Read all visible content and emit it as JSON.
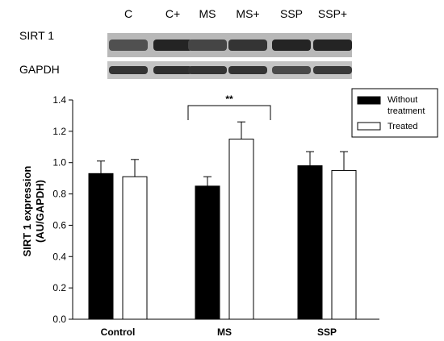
{
  "blot": {
    "lane_labels": [
      "C",
      "C+",
      "MS",
      "MS+",
      "SSP",
      "SSP+"
    ],
    "rows": [
      {
        "label": "SIRT 1",
        "intensities": [
          0.55,
          0.95,
          0.65,
          0.8,
          0.95,
          0.95
        ]
      },
      {
        "label": "GAPDH",
        "intensities": [
          0.8,
          0.85,
          0.8,
          0.8,
          0.6,
          0.75
        ]
      }
    ]
  },
  "chart_data": {
    "type": "bar",
    "title": "",
    "xlabel": "",
    "ylabel_lines": [
      "SIRT 1 expression",
      "(AU/GAPDH)"
    ],
    "categories": [
      "Control",
      "MS",
      "SSP"
    ],
    "ylim": [
      0.0,
      1.4
    ],
    "yticks": [
      "0.0",
      "0.2",
      "0.4",
      "0.6",
      "0.8",
      "1.0",
      "1.2",
      "1.4"
    ],
    "series": [
      {
        "name_lines": [
          "Without",
          "treatment"
        ],
        "color": "#000000",
        "values": [
          0.93,
          0.85,
          0.98
        ],
        "errors": [
          0.08,
          0.06,
          0.09
        ]
      },
      {
        "name_lines": [
          "Treated"
        ],
        "color": "#ffffff",
        "values": [
          0.91,
          1.15,
          0.95
        ],
        "errors": [
          0.11,
          0.11,
          0.12
        ]
      }
    ],
    "annotations": [
      {
        "text": "**",
        "between": [
          "MS",
          "Control"
        ],
        "bracket_from_category": 0,
        "bracket_to_category": 1,
        "bracket_y": 1.28
      }
    ],
    "legend_position": "top-right",
    "grid": false
  }
}
